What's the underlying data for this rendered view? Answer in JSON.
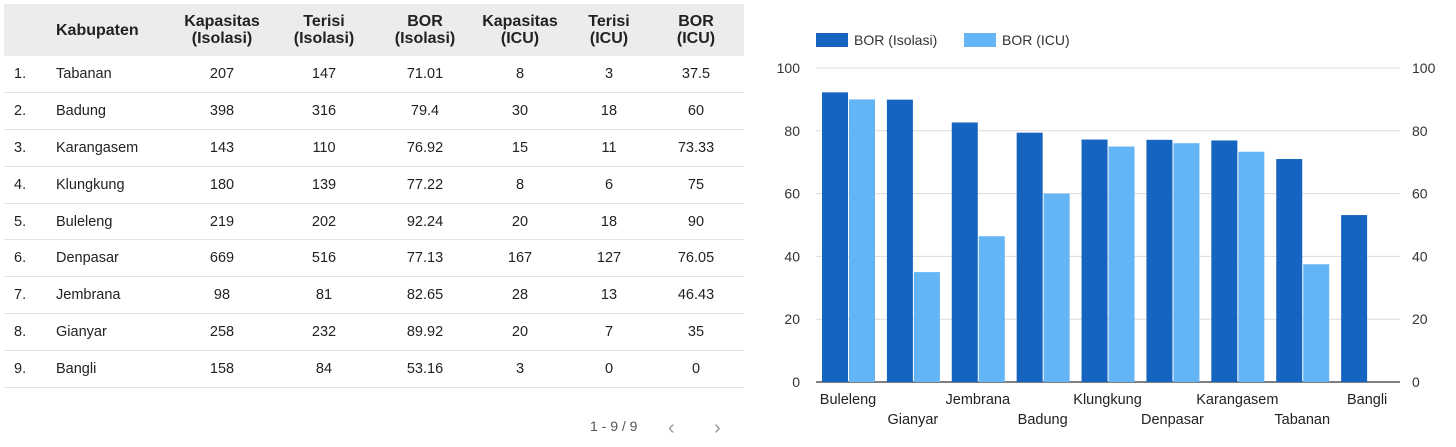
{
  "table": {
    "headers": {
      "kabupaten": "Kabupaten",
      "kap_iso_1": "Kapasitas",
      "kap_iso_2": "(Isolasi)",
      "ter_iso_1": "Terisi",
      "ter_iso_2": "(Isolasi)",
      "bor_iso_1": "BOR",
      "bor_iso_2": "(Isolasi)",
      "kap_icu_1": "Kapasitas",
      "kap_icu_2": "(ICU)",
      "ter_icu_1": "Terisi",
      "ter_icu_2": "(ICU)",
      "bor_icu_1": "BOR",
      "bor_icu_2": "(ICU)"
    },
    "rows": [
      {
        "no": "1.",
        "kabupaten": "Tabanan",
        "kap_iso": "207",
        "ter_iso": "147",
        "bor_iso": "71.01",
        "kap_icu": "8",
        "ter_icu": "3",
        "bor_icu": "37.5"
      },
      {
        "no": "2.",
        "kabupaten": "Badung",
        "kap_iso": "398",
        "ter_iso": "316",
        "bor_iso": "79.4",
        "kap_icu": "30",
        "ter_icu": "18",
        "bor_icu": "60"
      },
      {
        "no": "3.",
        "kabupaten": "Karangasem",
        "kap_iso": "143",
        "ter_iso": "110",
        "bor_iso": "76.92",
        "kap_icu": "15",
        "ter_icu": "11",
        "bor_icu": "73.33"
      },
      {
        "no": "4.",
        "kabupaten": "Klungkung",
        "kap_iso": "180",
        "ter_iso": "139",
        "bor_iso": "77.22",
        "kap_icu": "8",
        "ter_icu": "6",
        "bor_icu": "75"
      },
      {
        "no": "5.",
        "kabupaten": "Buleleng",
        "kap_iso": "219",
        "ter_iso": "202",
        "bor_iso": "92.24",
        "kap_icu": "20",
        "ter_icu": "18",
        "bor_icu": "90"
      },
      {
        "no": "6.",
        "kabupaten": "Denpasar",
        "kap_iso": "669",
        "ter_iso": "516",
        "bor_iso": "77.13",
        "kap_icu": "167",
        "ter_icu": "127",
        "bor_icu": "76.05"
      },
      {
        "no": "7.",
        "kabupaten": "Jembrana",
        "kap_iso": "98",
        "ter_iso": "81",
        "bor_iso": "82.65",
        "kap_icu": "28",
        "ter_icu": "13",
        "bor_icu": "46.43"
      },
      {
        "no": "8.",
        "kabupaten": "Gianyar",
        "kap_iso": "258",
        "ter_iso": "232",
        "bor_iso": "89.92",
        "kap_icu": "20",
        "ter_icu": "7",
        "bor_icu": "35"
      },
      {
        "no": "9.",
        "kabupaten": "Bangli",
        "kap_iso": "158",
        "ter_iso": "84",
        "bor_iso": "53.16",
        "kap_icu": "3",
        "ter_icu": "0",
        "bor_icu": "0"
      }
    ]
  },
  "pagination": {
    "label": "1 - 9 / 9",
    "prev_icon": "chevron-left-icon",
    "next_icon": "chevron-right-icon"
  },
  "chart_data": {
    "type": "bar",
    "categories": [
      "Buleleng",
      "Gianyar",
      "Jembrana",
      "Badung",
      "Klungkung",
      "Denpasar",
      "Karangasem",
      "Tabanan",
      "Bangli"
    ],
    "series": [
      {
        "name": "BOR (Isolasi)",
        "color": "#1565c0",
        "values": [
          92.24,
          89.92,
          82.65,
          79.4,
          77.22,
          77.13,
          76.92,
          71.01,
          53.16
        ]
      },
      {
        "name": "BOR (ICU)",
        "color": "#64b5f6",
        "values": [
          90,
          35,
          46.43,
          60,
          75,
          76.05,
          73.33,
          37.5,
          0
        ]
      }
    ],
    "ylim": [
      0,
      100
    ],
    "yticks": [
      0,
      20,
      40,
      60,
      80,
      100
    ],
    "y_axis_both_sides": true,
    "grid": true,
    "legend_position": "top-left",
    "title": "",
    "xlabel": "",
    "ylabel": ""
  }
}
